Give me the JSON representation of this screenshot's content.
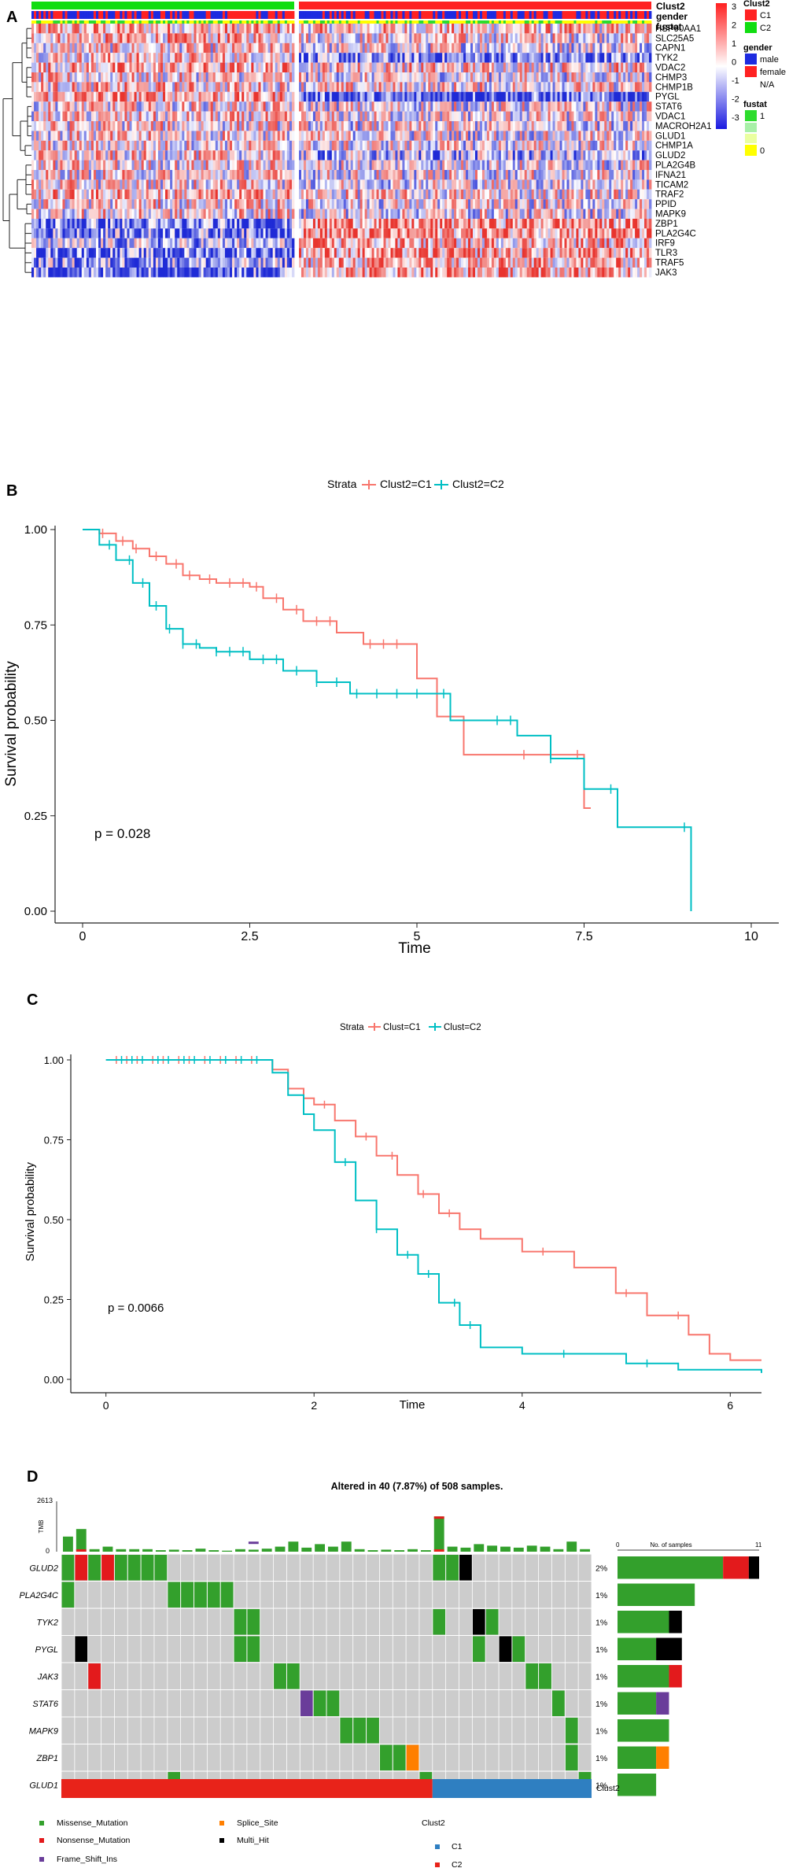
{
  "colors": {
    "hm_low": "#1f2bd6",
    "hm_mid": "#ffffff",
    "hm_high": "#e8342e",
    "c1": "#f8766d",
    "c2": "#00bfc4",
    "bar_c1": "#e8231a",
    "bar_c2": "#2f7fc1",
    "male": "#1d2be0",
    "female": "#ff2222",
    "fustat1": "#2ddc2d",
    "fustat0": "#ffff00",
    "missense": "#33a02c",
    "nonsense": "#e31a1c",
    "splice": "#ff7f00",
    "multi": "#000000",
    "frameshift": "#6a3d9a",
    "grey": "#cccccc"
  },
  "chart_data": [
    {
      "panel": "A",
      "type": "heatmap",
      "annotation_rows": [
        "Clust2",
        "gender",
        "fustat"
      ],
      "genes": [
        "HSP90AA1",
        "SLC25A5",
        "CAPN1",
        "TYK2",
        "VDAC2",
        "CHMP3",
        "CHMP1B",
        "PYGL",
        "STAT6",
        "VDAC1",
        "MACROH2A1",
        "GLUD1",
        "CHMP1A",
        "GLUD2",
        "PLA2G4B",
        "IFNA21",
        "TICAM2",
        "TRAF2",
        "PPID",
        "MAPK9",
        "ZBP1",
        "PLA2G4C",
        "IRF9",
        "TLR3",
        "TRAF5",
        "JAK3"
      ],
      "color_scale": {
        "ticks": [
          "3",
          "2",
          "1",
          "0",
          "-1",
          "-2",
          "-3"
        ]
      },
      "legend": {
        "clust2_title": "Clust2",
        "clust2_items": [
          "C1",
          "C2"
        ],
        "gender_title": "gender",
        "gender_items": [
          "male",
          "female",
          "N/A"
        ],
        "fustat_title": "fustat",
        "fustat_items": [
          "1",
          "0"
        ]
      }
    },
    {
      "panel": "B",
      "type": "line",
      "legend_title": "Strata",
      "legend_labels": [
        "Clust2=C1",
        "Clust2=C2"
      ],
      "xlabel": "Time",
      "ylabel": "Survival probability",
      "xlim": [
        0,
        10
      ],
      "ylim": [
        0,
        1
      ],
      "x_ticks": [
        "0",
        "2.5",
        "5",
        "7.5",
        "10"
      ],
      "x_tick_values": [
        0,
        2.5,
        5,
        7.5,
        10
      ],
      "y_ticks": [
        "0.00",
        "0.25",
        "0.50",
        "0.75",
        "1.00"
      ],
      "pvalue": "p = 0.028",
      "series": [
        {
          "name": "Clust2=C1",
          "x": [
            0,
            0.25,
            0.5,
            0.75,
            1.0,
            1.25,
            1.5,
            1.75,
            2.0,
            2.5,
            2.7,
            3.0,
            3.3,
            3.8,
            4.2,
            4.8,
            5.0,
            5.3,
            5.7,
            6.5,
            7.0,
            7.4,
            7.5,
            7.6
          ],
          "y": [
            1.0,
            0.99,
            0.97,
            0.95,
            0.93,
            0.91,
            0.88,
            0.87,
            0.86,
            0.85,
            0.82,
            0.79,
            0.76,
            0.73,
            0.7,
            0.7,
            0.61,
            0.51,
            0.41,
            0.41,
            0.41,
            0.41,
            0.27,
            0.27
          ],
          "censor": [
            0.3,
            0.6,
            0.8,
            1.1,
            1.4,
            1.6,
            1.9,
            2.2,
            2.4,
            2.6,
            2.9,
            3.2,
            3.5,
            3.7,
            4.3,
            4.5,
            4.7,
            6.6,
            7.4
          ]
        },
        {
          "name": "Clust2=C2",
          "x": [
            0,
            0.25,
            0.5,
            0.75,
            1.0,
            1.25,
            1.5,
            1.75,
            2.0,
            2.5,
            3.0,
            3.5,
            4.0,
            4.5,
            5.0,
            5.5,
            6.0,
            6.5,
            7.0,
            7.5,
            7.9,
            8.0,
            8.5,
            9.0,
            9.1
          ],
          "y": [
            1.0,
            0.96,
            0.92,
            0.86,
            0.8,
            0.74,
            0.7,
            0.69,
            0.68,
            0.66,
            0.63,
            0.6,
            0.57,
            0.57,
            0.57,
            0.5,
            0.5,
            0.46,
            0.4,
            0.32,
            0.32,
            0.22,
            0.22,
            0.22,
            0.0
          ],
          "censor": [
            0.4,
            0.7,
            0.9,
            1.1,
            1.3,
            1.5,
            1.7,
            2.0,
            2.2,
            2.4,
            2.7,
            2.9,
            3.2,
            3.5,
            3.8,
            4.1,
            4.4,
            4.7,
            5.0,
            5.4,
            6.2,
            6.4,
            7.0,
            7.9,
            9.0
          ]
        }
      ]
    },
    {
      "panel": "C",
      "type": "line",
      "legend_title": "Strata",
      "legend_labels": [
        "Clust=C1",
        "Clust=C2"
      ],
      "xlabel": "Time",
      "ylabel": "Survival probability",
      "xlim": [
        -0.3,
        6.3
      ],
      "ylim": [
        0,
        1
      ],
      "x_ticks": [
        "0",
        "2",
        "4",
        "6"
      ],
      "x_tick_values": [
        0,
        2,
        4,
        6
      ],
      "y_ticks": [
        "0.00",
        "0.25",
        "0.50",
        "0.75",
        "1.00"
      ],
      "pvalue": "p = 0.0066",
      "series": [
        {
          "name": "Clust=C1",
          "x": [
            0,
            1.5,
            1.6,
            1.75,
            1.9,
            2.0,
            2.2,
            2.4,
            2.6,
            2.8,
            3.0,
            3.2,
            3.4,
            3.6,
            4.0,
            4.5,
            4.9,
            5.2,
            5.6,
            5.8,
            6.0,
            6.3
          ],
          "y": [
            1.0,
            1.0,
            0.97,
            0.91,
            0.88,
            0.86,
            0.81,
            0.76,
            0.7,
            0.64,
            0.58,
            0.52,
            0.47,
            0.44,
            0.4,
            0.35,
            0.27,
            0.2,
            0.14,
            0.08,
            0.06,
            0.06
          ],
          "censor": [
            0.1,
            0.2,
            0.3,
            0.45,
            0.55,
            0.7,
            0.8,
            0.95,
            1.1,
            1.25,
            1.4,
            2.1,
            2.5,
            2.75,
            3.05,
            3.3,
            4.2,
            5.0,
            5.5
          ]
        },
        {
          "name": "Clust=C2",
          "x": [
            0,
            1.5,
            1.6,
            1.75,
            1.9,
            2.0,
            2.2,
            2.4,
            2.6,
            2.8,
            3.0,
            3.2,
            3.4,
            3.6,
            4.0,
            4.5,
            5.0,
            5.5,
            6.0,
            6.3
          ],
          "y": [
            1.0,
            1.0,
            0.96,
            0.89,
            0.83,
            0.78,
            0.68,
            0.56,
            0.47,
            0.39,
            0.33,
            0.24,
            0.17,
            0.1,
            0.08,
            0.08,
            0.05,
            0.03,
            0.03,
            0.02
          ],
          "censor": [
            0.15,
            0.25,
            0.35,
            0.5,
            0.6,
            0.75,
            0.85,
            1.0,
            1.15,
            1.3,
            1.45,
            2.3,
            2.6,
            2.9,
            3.1,
            3.35,
            3.5,
            4.4,
            5.2
          ]
        }
      ]
    },
    {
      "panel": "D",
      "type": "table",
      "title": "Altered in 40 (7.87%) of 508 samples.",
      "tmb_label": "TMB",
      "tmb_ticks": [
        "2613",
        "0"
      ],
      "genes": [
        "GLUD2",
        "PLA2G4C",
        "TYK2",
        "PYGL",
        "JAK3",
        "STAT6",
        "MAPK9",
        "ZBP1",
        "GLUD1"
      ],
      "percents": [
        "2%",
        "1%",
        "1%",
        "1%",
        "1%",
        "1%",
        "1%",
        "1%",
        "1%"
      ],
      "gene_counts": [
        11,
        6,
        5,
        5,
        5,
        4,
        4,
        4,
        3
      ],
      "samples_axis_label": "No. of samples",
      "samples_axis_ticks": [
        "0",
        "11"
      ],
      "samples_axis_max": 11,
      "clust_label": "Clust2",
      "clust_split_fraction": 0.7,
      "legend_items": [
        "Missense_Mutation",
        "Nonsense_Mutation",
        "Frame_Shift_Ins",
        "Splice_Site",
        "Multi_Hit"
      ],
      "clust_legend_title": "Clust2",
      "clust_legend_items": [
        "C1",
        "C2"
      ]
    }
  ],
  "panel_letters": [
    "A",
    "B",
    "C",
    "D"
  ]
}
